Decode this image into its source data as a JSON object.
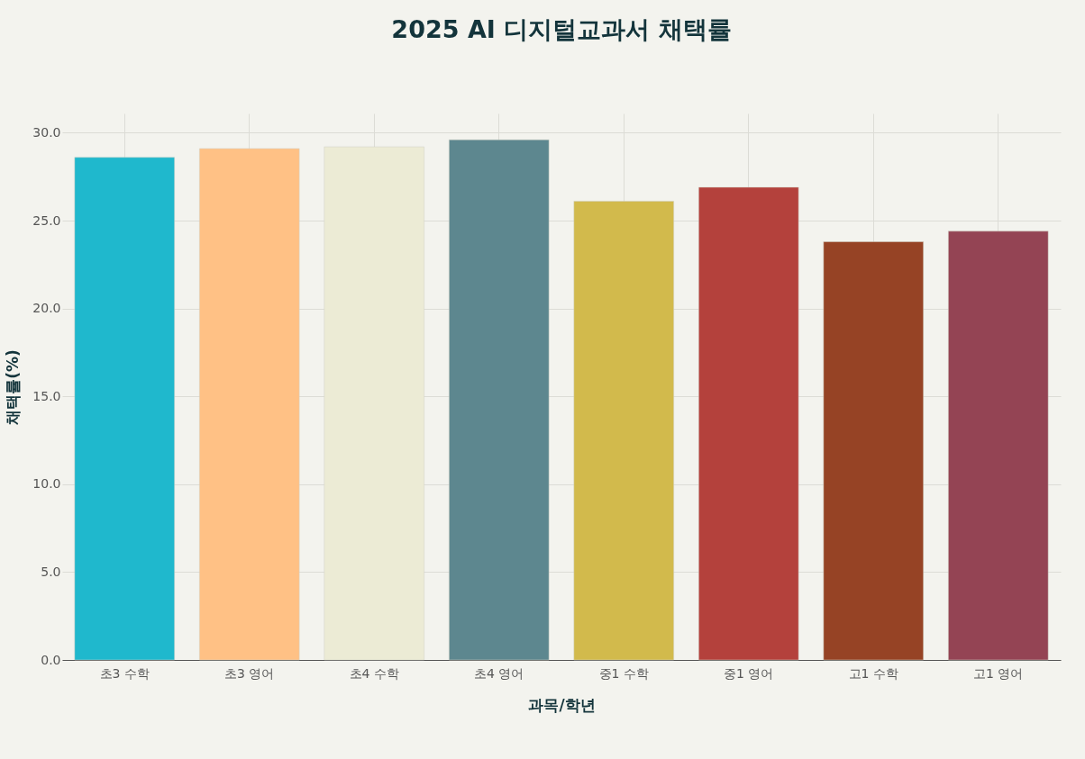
{
  "chart_data": {
    "type": "bar",
    "title": "2025 AI 디지털교과서 채택률",
    "xlabel": "과목/학년",
    "ylabel": "채택률(%)",
    "categories": [
      "초3 수학",
      "초3 영어",
      "초4 수학",
      "초4 영어",
      "중1 수학",
      "중1 영어",
      "고1 수학",
      "고1 영어"
    ],
    "values": [
      28.6,
      29.1,
      29.2,
      29.6,
      26.1,
      26.9,
      23.8,
      24.4
    ],
    "colors": [
      "#1fb8cd",
      "#ffc185",
      "#eceBd5",
      "#5d878f",
      "#d2ba4c",
      "#b4413c",
      "#964325",
      "#944454"
    ],
    "ylim": [
      0,
      31.1
    ],
    "yticks": [
      {
        "value": 0,
        "label": "0.0"
      },
      {
        "value": 5,
        "label": "5.0"
      },
      {
        "value": 10,
        "label": "10.0"
      },
      {
        "value": 15,
        "label": "15.0"
      },
      {
        "value": 20,
        "label": "20.0"
      },
      {
        "value": 25,
        "label": "25.0"
      },
      {
        "value": 30,
        "label": "30.0"
      }
    ],
    "grid": true
  }
}
